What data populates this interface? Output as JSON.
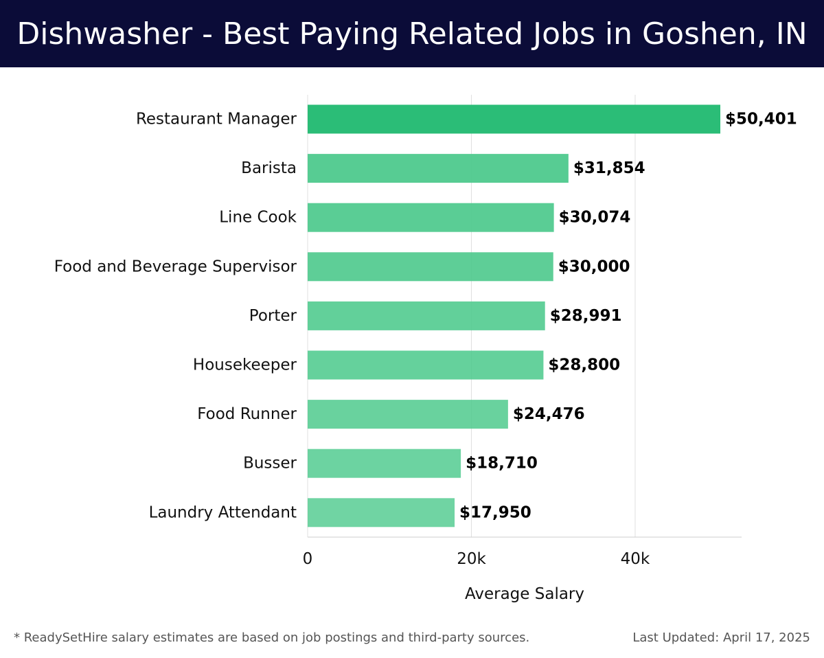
{
  "header": {
    "title": "Dishwasher - Best Paying Related Jobs in Goshen, IN"
  },
  "chart_data": {
    "type": "bar",
    "orientation": "horizontal",
    "categories": [
      "Restaurant Manager",
      "Barista",
      "Line Cook",
      "Food and Beverage Supervisor",
      "Porter",
      "Housekeeper",
      "Food Runner",
      "Busser",
      "Laundry Attendant"
    ],
    "values": [
      50401,
      31854,
      30074,
      30000,
      28991,
      28800,
      24476,
      18710,
      17950
    ],
    "value_labels": [
      "$50,401",
      "$31,854",
      "$30,074",
      "$30,000",
      "$28,991",
      "$28,800",
      "$24,476",
      "$18,710",
      "$17,950"
    ],
    "xlabel": "Average Salary",
    "ylabel": "",
    "xlim": [
      0,
      53000
    ],
    "x_ticks": [
      0,
      20000,
      40000
    ],
    "x_tick_labels": [
      "0",
      "20k",
      "40k"
    ],
    "grid": "vertical",
    "colors": {
      "top_bar": "#2bbd77",
      "bar": "#4cc98c",
      "grid": "#e0e0e0",
      "axis": "#cccccc",
      "label": "#000000"
    }
  },
  "footer": {
    "note": "* ReadySetHire salary estimates are based on job postings and third-party sources.",
    "updated": "Last Updated: April 17, 2025"
  }
}
